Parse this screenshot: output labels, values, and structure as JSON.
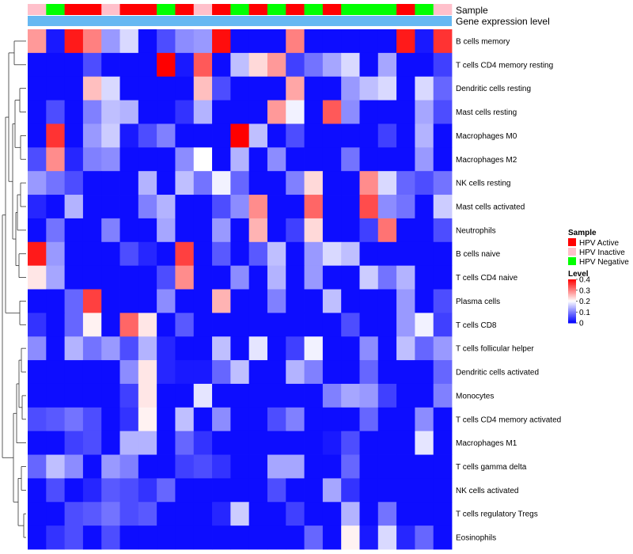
{
  "chart_data": {
    "type": "heatmap",
    "title": "",
    "annotation_rows": [
      {
        "label": "Sample"
      },
      {
        "label": "Gene expression level"
      }
    ],
    "samples": [
      "HPV Inactive",
      "HPV Negative",
      "HPV Active",
      "HPV Active",
      "HPV Inactive",
      "HPV Active",
      "HPV Active",
      "HPV Negative",
      "HPV Active",
      "HPV Inactive",
      "HPV Active",
      "HPV Negative",
      "HPV Active",
      "HPV Negative",
      "HPV Active",
      "HPV Negative",
      "HPV Active",
      "HPV Negative",
      "HPV Negative",
      "HPV Negative",
      "HPV Active",
      "HPV Negative",
      "HPV Inactive"
    ],
    "sample_legend": {
      "title": "Sample",
      "entries": [
        {
          "name": "HPV Active",
          "color": "#ff0000"
        },
        {
          "name": "HPV Inactive",
          "color": "#ffc0cb"
        },
        {
          "name": "HPV Negative",
          "color": "#00ff00"
        }
      ]
    },
    "expression_annotation_color": "#66b8f2",
    "color_scale": {
      "title": "Level",
      "min": 0,
      "max": 0.4,
      "ticks": [
        "0.4",
        "0.3",
        "0.2",
        "0.1",
        "0"
      ],
      "colors": [
        "#0000ff",
        "#ffffff",
        "#ff0000"
      ],
      "mid": 0.2
    },
    "rows": [
      {
        "name": "B cells memory",
        "values": [
          0.28,
          0.02,
          0.38,
          0.3,
          0.12,
          0.17,
          0.01,
          0.06,
          0.11,
          0.12,
          0.39,
          0.01,
          0.01,
          0.01,
          0.3,
          0.01,
          0.01,
          0.01,
          0.01,
          0.01,
          0.38,
          0.02,
          0.36
        ]
      },
      {
        "name": "T cells CD4 memory resting",
        "values": [
          0.01,
          0.01,
          0.01,
          0.06,
          0.01,
          0.01,
          0.01,
          0.4,
          0.02,
          0.33,
          0.01,
          0.15,
          0.23,
          0.28,
          0.05,
          0.09,
          0.13,
          0.17,
          0.01,
          0.13,
          0.01,
          0.01,
          0.05
        ]
      },
      {
        "name": "Dendritic cells resting",
        "values": [
          0.01,
          0.01,
          0.01,
          0.25,
          0.17,
          0.01,
          0.01,
          0.01,
          0.01,
          0.25,
          0.06,
          0.01,
          0.01,
          0.01,
          0.27,
          0.01,
          0.01,
          0.12,
          0.15,
          0.17,
          0.01,
          0.17,
          0.08
        ]
      },
      {
        "name": "Mast cells resting",
        "values": [
          0.01,
          0.06,
          0.01,
          0.1,
          0.15,
          0.14,
          0.01,
          0.01,
          0.04,
          0.14,
          0.01,
          0.01,
          0.01,
          0.28,
          0.19,
          0.01,
          0.33,
          0.11,
          0.01,
          0.01,
          0.01,
          0.13,
          0.06
        ]
      },
      {
        "name": "Macrophages M0",
        "values": [
          0.01,
          0.36,
          0.01,
          0.12,
          0.16,
          0.02,
          0.06,
          0.1,
          0.01,
          0.01,
          0.01,
          0.4,
          0.15,
          0.01,
          0.06,
          0.01,
          0.01,
          0.01,
          0.01,
          0.05,
          0.01,
          0.14,
          0.01
        ]
      },
      {
        "name": "Macrophages M2",
        "values": [
          0.06,
          0.29,
          0.03,
          0.1,
          0.11,
          0.01,
          0.01,
          0.01,
          0.11,
          0.2,
          0.01,
          0.14,
          0.01,
          0.11,
          0.01,
          0.01,
          0.01,
          0.09,
          0.01,
          0.01,
          0.01,
          0.12,
          0.01
        ]
      },
      {
        "name": "NK cells resting",
        "values": [
          0.12,
          0.09,
          0.06,
          0.01,
          0.01,
          0.01,
          0.14,
          0.01,
          0.15,
          0.09,
          0.19,
          0.08,
          0.01,
          0.01,
          0.1,
          0.23,
          0.01,
          0.01,
          0.29,
          0.17,
          0.08,
          0.06,
          0.09
        ]
      },
      {
        "name": "Mast cells activated",
        "values": [
          0.03,
          0.01,
          0.14,
          0.01,
          0.01,
          0.01,
          0.1,
          0.14,
          0.01,
          0.01,
          0.06,
          0.11,
          0.29,
          0.01,
          0.01,
          0.32,
          0.01,
          0.01,
          0.34,
          0.11,
          0.09,
          0.01,
          0.16
        ]
      },
      {
        "name": "Neutrophils",
        "values": [
          0.01,
          0.09,
          0.01,
          0.01,
          0.1,
          0.01,
          0.01,
          0.13,
          0.01,
          0.01,
          0.12,
          0.01,
          0.26,
          0.01,
          0.05,
          0.23,
          0.01,
          0.01,
          0.05,
          0.31,
          0.01,
          0.01,
          0.06
        ]
      },
      {
        "name": "B cells naive",
        "values": [
          0.38,
          0.12,
          0.01,
          0.01,
          0.01,
          0.06,
          0.03,
          0.01,
          0.35,
          0.01,
          0.07,
          0.01,
          0.07,
          0.15,
          0.01,
          0.12,
          0.17,
          0.15,
          0.01,
          0.01,
          0.01,
          0.01,
          0.01
        ]
      },
      {
        "name": "T cells CD4 naive",
        "values": [
          0.22,
          0.13,
          0.01,
          0.01,
          0.01,
          0.01,
          0.01,
          0.06,
          0.29,
          0.01,
          0.01,
          0.11,
          0.01,
          0.14,
          0.01,
          0.12,
          0.01,
          0.01,
          0.16,
          0.09,
          0.14,
          0.01,
          0.01
        ]
      },
      {
        "name": "Plasma cells",
        "values": [
          0.01,
          0.01,
          0.08,
          0.35,
          0.01,
          0.01,
          0.01,
          0.11,
          0.01,
          0.01,
          0.26,
          0.01,
          0.01,
          0.1,
          0.01,
          0.01,
          0.15,
          0.01,
          0.01,
          0.01,
          0.12,
          0.01,
          0.06
        ]
      },
      {
        "name": "T cells CD8",
        "values": [
          0.04,
          0.01,
          0.08,
          0.21,
          0.01,
          0.32,
          0.22,
          0.01,
          0.07,
          0.01,
          0.01,
          0.01,
          0.01,
          0.01,
          0.01,
          0.01,
          0.01,
          0.06,
          0.01,
          0.01,
          0.12,
          0.19,
          0.05
        ]
      },
      {
        "name": "T cells follicular helper",
        "values": [
          0.11,
          0.01,
          0.14,
          0.09,
          0.12,
          0.06,
          0.14,
          0.03,
          0.01,
          0.01,
          0.15,
          0.01,
          0.18,
          0.01,
          0.05,
          0.19,
          0.01,
          0.01,
          0.11,
          0.01,
          0.15,
          0.08,
          0.12
        ]
      },
      {
        "name": "Dendritic cells activated",
        "values": [
          0.01,
          0.01,
          0.01,
          0.01,
          0.01,
          0.11,
          0.22,
          0.03,
          0.02,
          0.02,
          0.08,
          0.15,
          0.01,
          0.01,
          0.14,
          0.1,
          0.01,
          0.01,
          0.08,
          0.01,
          0.01,
          0.01,
          0.08
        ]
      },
      {
        "name": "Monocytes",
        "values": [
          0.01,
          0.01,
          0.01,
          0.01,
          0.01,
          0.05,
          0.22,
          0.01,
          0.01,
          0.18,
          0.01,
          0.01,
          0.01,
          0.01,
          0.01,
          0.01,
          0.1,
          0.13,
          0.12,
          0.05,
          0.01,
          0.01,
          0.1
        ]
      },
      {
        "name": "T cells CD4 memory activated",
        "values": [
          0.06,
          0.07,
          0.09,
          0.06,
          0.01,
          0.04,
          0.21,
          0.01,
          0.15,
          0.01,
          0.11,
          0.01,
          0.01,
          0.06,
          0.1,
          0.01,
          0.01,
          0.01,
          0.08,
          0.01,
          0.01,
          0.11,
          0.01
        ]
      },
      {
        "name": "Macrophages M1",
        "values": [
          0.01,
          0.01,
          0.05,
          0.06,
          0.01,
          0.14,
          0.14,
          0.01,
          0.08,
          0.04,
          0.01,
          0.01,
          0.01,
          0.01,
          0.01,
          0.01,
          0.02,
          0.06,
          0.01,
          0.01,
          0.01,
          0.18,
          0.01
        ]
      },
      {
        "name": "T cells gamma delta",
        "values": [
          0.08,
          0.15,
          0.11,
          0.01,
          0.12,
          0.1,
          0.01,
          0.01,
          0.05,
          0.06,
          0.04,
          0.01,
          0.01,
          0.13,
          0.13,
          0.01,
          0.01,
          0.08,
          0.01,
          0.01,
          0.01,
          0.01,
          0.01
        ]
      },
      {
        "name": "NK cells activated",
        "values": [
          0.01,
          0.06,
          0.01,
          0.03,
          0.07,
          0.06,
          0.04,
          0.08,
          0.01,
          0.01,
          0.01,
          0.01,
          0.01,
          0.06,
          0.01,
          0.01,
          0.13,
          0.04,
          0.01,
          0.01,
          0.01,
          0.01,
          0.01
        ]
      },
      {
        "name": "T cells regulatory  Tregs",
        "values": [
          0.01,
          0.01,
          0.06,
          0.07,
          0.09,
          0.06,
          0.07,
          0.01,
          0.01,
          0.01,
          0.03,
          0.16,
          0.01,
          0.01,
          0.05,
          0.01,
          0.01,
          0.14,
          0.01,
          0.09,
          0.01,
          0.01,
          0.01
        ]
      },
      {
        "name": "Eosinophils",
        "values": [
          0.01,
          0.04,
          0.06,
          0.01,
          0.06,
          0.01,
          0.01,
          0.01,
          0.01,
          0.01,
          0.01,
          0.01,
          0.01,
          0.01,
          0.01,
          0.08,
          0.01,
          0.21,
          0.02,
          0.17,
          0.03,
          0.08,
          0.01
        ]
      }
    ],
    "row_dendrogram": true
  }
}
